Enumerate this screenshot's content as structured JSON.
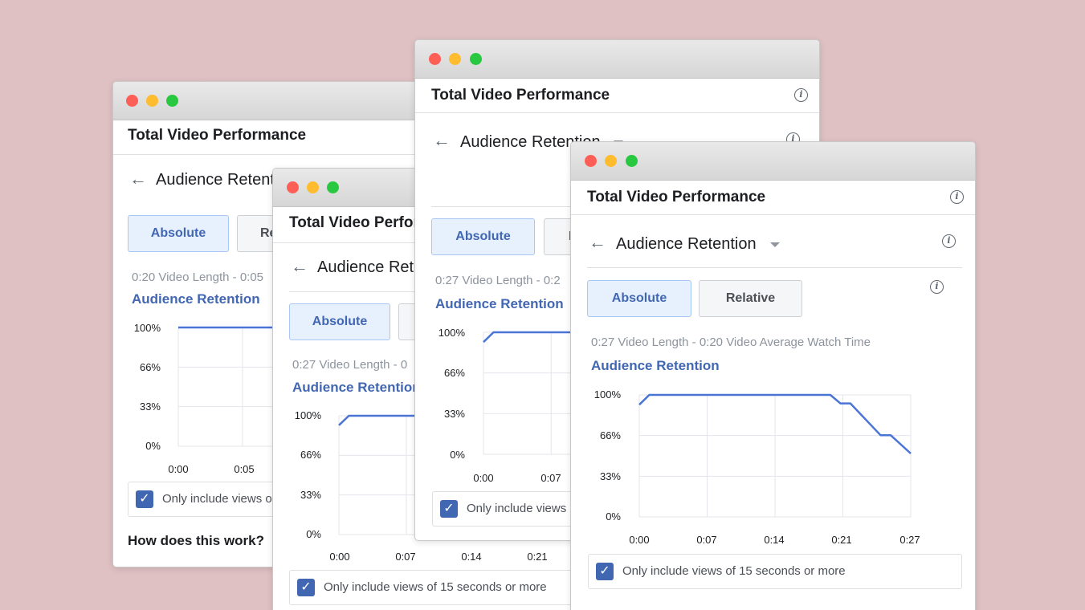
{
  "panel_title": "Total Video Performance",
  "audience_retention_title": "Audience Retention",
  "buttons": {
    "absolute": "Absolute",
    "relative": "Relative"
  },
  "checkbox_label": "Only include views of 15 seconds or more",
  "how_link": "How does this work?",
  "windows": [
    {
      "id": "w1",
      "meta": "0:20 Video Length - 0:05",
      "relative_label": "Re",
      "y_ticks": [
        "100%",
        "66%",
        "33%",
        "0%"
      ],
      "x_ticks": [
        "0:00",
        "0:05"
      ]
    },
    {
      "id": "w2",
      "meta": "0:27 Video Length - 0",
      "y_ticks": [
        "100%",
        "66%",
        "33%",
        "0%"
      ],
      "x_ticks": [
        "0:00",
        "0:07",
        "0:14",
        "0:21"
      ]
    },
    {
      "id": "w3",
      "meta": "0:27 Video Length - 0:2",
      "relative_label": "R",
      "y_ticks": [
        "100%",
        "66%",
        "33%",
        "0%"
      ],
      "x_ticks": [
        "0:00",
        "0:07"
      ]
    },
    {
      "id": "w4",
      "meta": "0:27 Video Length - 0:20 Video Average Watch Time",
      "relative_label": "Relative",
      "y_ticks": [
        "100%",
        "66%",
        "33%",
        "0%"
      ],
      "x_ticks": [
        "0:00",
        "0:07",
        "0:14",
        "0:21",
        "0:27"
      ]
    }
  ],
  "chart_data": [
    {
      "type": "line",
      "window": "w1",
      "title": "Audience Retention",
      "xlabel": "",
      "ylabel": "",
      "x_unit": "seconds",
      "xlim": [
        0,
        20
      ],
      "ylim": [
        0,
        100
      ],
      "x": [
        0,
        20
      ],
      "y": [
        100,
        100
      ],
      "grid": true
    },
    {
      "type": "line",
      "window": "w2",
      "title": "Audience Retention",
      "xlabel": "",
      "ylabel": "",
      "x_unit": "seconds",
      "xlim": [
        0,
        27
      ],
      "ylim": [
        0,
        100
      ],
      "x": [
        0,
        1,
        27
      ],
      "y": [
        92,
        100,
        100
      ],
      "grid": true
    },
    {
      "type": "line",
      "window": "w3",
      "title": "Audience Retention",
      "xlabel": "",
      "ylabel": "",
      "x_unit": "seconds",
      "xlim": [
        0,
        27
      ],
      "ylim": [
        0,
        100
      ],
      "x": [
        0,
        1,
        27
      ],
      "y": [
        92,
        100,
        100
      ],
      "grid": true
    },
    {
      "type": "line",
      "window": "w4",
      "title": "Audience Retention",
      "xlabel": "",
      "ylabel": "",
      "x_unit": "seconds",
      "xlim": [
        0,
        27
      ],
      "ylim": [
        0,
        100
      ],
      "x": [
        0,
        1,
        19,
        20,
        21,
        24,
        25,
        27
      ],
      "y": [
        92,
        100,
        100,
        93,
        93,
        67,
        67,
        52
      ],
      "grid": true
    }
  ],
  "colors": {
    "background": "#dfc1c3",
    "accent": "#4267b2",
    "line": "#4a74d6",
    "mac_red": "#fd5f57",
    "mac_yellow": "#febc2e",
    "mac_green": "#28c840"
  }
}
